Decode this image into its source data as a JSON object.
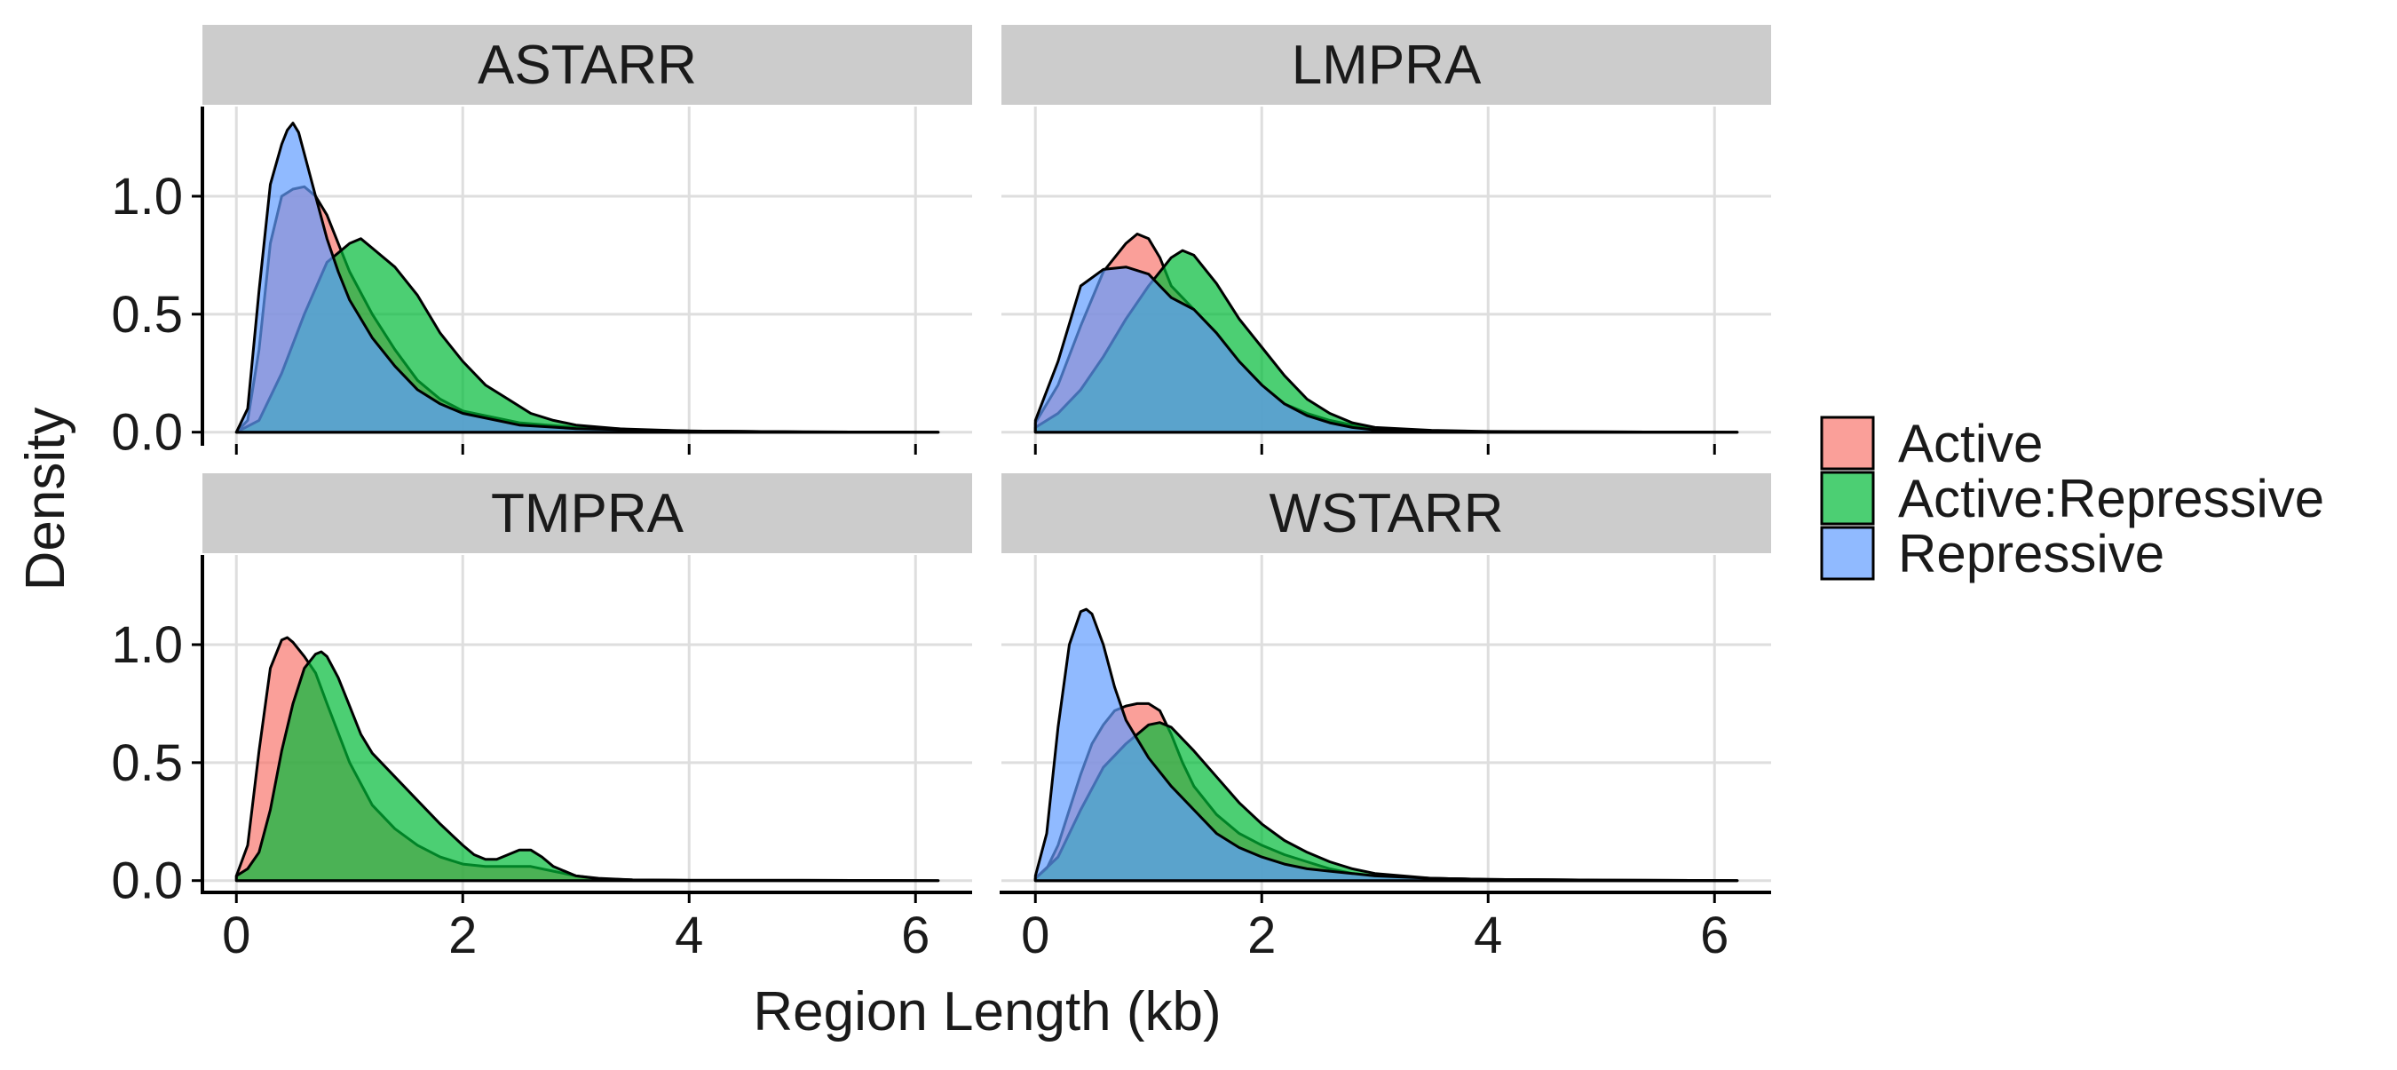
{
  "chart_data": {
    "type": "area",
    "xlabel": "Region Length (kb)",
    "ylabel": "Density",
    "xlim": [
      -0.3,
      6.5
    ],
    "ylim": [
      -0.05,
      1.38
    ],
    "x_ticks": [
      0,
      2,
      4,
      6
    ],
    "x_tick_labels": [
      "0",
      "2",
      "4",
      "6"
    ],
    "y_ticks": [
      0.0,
      0.5,
      1.0
    ],
    "y_tick_labels": [
      "0.0",
      "0.5",
      "1.0"
    ],
    "grid": true,
    "legend_position": "right",
    "legend": [
      {
        "label": "Active",
        "color": "#F8766D"
      },
      {
        "label": "Active:Repressive",
        "color": "#00BA38"
      },
      {
        "label": "Repressive",
        "color": "#619CFF"
      }
    ],
    "panels": [
      {
        "title": "ASTARR",
        "series": [
          {
            "name": "Active",
            "color": "#F8766D",
            "x": [
              0,
              0.1,
              0.2,
              0.3,
              0.4,
              0.5,
              0.6,
              0.7,
              0.8,
              0.9,
              1.0,
              1.2,
              1.4,
              1.6,
              1.8,
              2.0,
              2.5,
              3.0,
              4.0,
              5.0,
              6.2
            ],
            "y": [
              0,
              0.05,
              0.35,
              0.8,
              1.0,
              1.03,
              1.04,
              1.0,
              0.92,
              0.8,
              0.68,
              0.5,
              0.35,
              0.22,
              0.14,
              0.09,
              0.04,
              0.02,
              0.005,
              0.001,
              0
            ]
          },
          {
            "name": "Active:Repressive",
            "color": "#00BA38",
            "x": [
              0,
              0.2,
              0.4,
              0.6,
              0.8,
              1.0,
              1.1,
              1.2,
              1.4,
              1.6,
              1.8,
              2.0,
              2.2,
              2.4,
              2.6,
              2.8,
              3.0,
              3.5,
              4.0,
              5.0,
              6.2
            ],
            "y": [
              0,
              0.05,
              0.25,
              0.5,
              0.72,
              0.8,
              0.82,
              0.78,
              0.7,
              0.58,
              0.42,
              0.3,
              0.2,
              0.14,
              0.08,
              0.05,
              0.03,
              0.01,
              0.005,
              0.001,
              0
            ]
          },
          {
            "name": "Repressive",
            "color": "#619CFF",
            "x": [
              0,
              0.1,
              0.2,
              0.3,
              0.4,
              0.45,
              0.5,
              0.55,
              0.6,
              0.7,
              0.8,
              0.9,
              1.0,
              1.2,
              1.4,
              1.6,
              1.8,
              2.0,
              2.5,
              3.0,
              4.0,
              5.0,
              6.2
            ],
            "y": [
              0,
              0.1,
              0.6,
              1.05,
              1.22,
              1.28,
              1.31,
              1.27,
              1.18,
              1.0,
              0.82,
              0.68,
              0.56,
              0.4,
              0.28,
              0.18,
              0.12,
              0.08,
              0.03,
              0.015,
              0.005,
              0.001,
              0
            ]
          }
        ]
      },
      {
        "title": "LMPRA",
        "series": [
          {
            "name": "Active",
            "color": "#F8766D",
            "x": [
              0,
              0.2,
              0.4,
              0.6,
              0.8,
              0.9,
              1.0,
              1.1,
              1.2,
              1.4,
              1.6,
              1.8,
              2.0,
              2.2,
              2.4,
              2.6,
              2.8,
              3.0,
              3.5,
              4.0,
              5.0,
              6.2
            ],
            "y": [
              0.04,
              0.2,
              0.45,
              0.68,
              0.8,
              0.84,
              0.82,
              0.74,
              0.62,
              0.52,
              0.42,
              0.3,
              0.2,
              0.12,
              0.08,
              0.05,
              0.03,
              0.015,
              0.005,
              0.002,
              0.001,
              0
            ]
          },
          {
            "name": "Active:Repressive",
            "color": "#00BA38",
            "x": [
              0,
              0.2,
              0.4,
              0.6,
              0.8,
              1.0,
              1.2,
              1.3,
              1.4,
              1.6,
              1.8,
              2.0,
              2.2,
              2.4,
              2.6,
              2.8,
              3.0,
              3.5,
              4.0,
              5.0,
              6.2
            ],
            "y": [
              0.02,
              0.08,
              0.18,
              0.32,
              0.48,
              0.62,
              0.74,
              0.77,
              0.75,
              0.63,
              0.48,
              0.36,
              0.24,
              0.14,
              0.08,
              0.04,
              0.02,
              0.008,
              0.003,
              0.001,
              0
            ]
          },
          {
            "name": "Repressive",
            "color": "#619CFF",
            "x": [
              0,
              0.2,
              0.4,
              0.6,
              0.8,
              1.0,
              1.1,
              1.2,
              1.4,
              1.6,
              1.8,
              2.0,
              2.2,
              2.4,
              2.6,
              2.8,
              3.0,
              3.5,
              4.0,
              5.0,
              6.2
            ],
            "y": [
              0.05,
              0.3,
              0.62,
              0.69,
              0.7,
              0.67,
              0.62,
              0.57,
              0.52,
              0.42,
              0.3,
              0.2,
              0.12,
              0.07,
              0.04,
              0.02,
              0.01,
              0.005,
              0.002,
              0.001,
              0
            ]
          }
        ]
      },
      {
        "title": "TMPRA",
        "series": [
          {
            "name": "Active",
            "color": "#F8766D",
            "x": [
              0,
              0.1,
              0.2,
              0.3,
              0.4,
              0.45,
              0.5,
              0.6,
              0.7,
              0.8,
              1.0,
              1.2,
              1.4,
              1.6,
              1.8,
              2.0,
              2.2,
              2.4,
              2.6,
              2.8,
              3.0,
              3.2,
              3.5,
              4.0,
              5.0,
              6.2
            ],
            "y": [
              0.02,
              0.15,
              0.55,
              0.9,
              1.02,
              1.03,
              1.01,
              0.95,
              0.88,
              0.75,
              0.5,
              0.32,
              0.22,
              0.15,
              0.1,
              0.07,
              0.06,
              0.06,
              0.06,
              0.04,
              0.02,
              0.01,
              0.003,
              0.001,
              0.001,
              0
            ]
          },
          {
            "name": "Active:Repressive",
            "color": "#00BA38",
            "x": [
              0,
              0.1,
              0.2,
              0.3,
              0.4,
              0.5,
              0.6,
              0.7,
              0.75,
              0.8,
              0.9,
              1.0,
              1.1,
              1.2,
              1.4,
              1.6,
              1.8,
              2.0,
              2.1,
              2.2,
              2.3,
              2.4,
              2.5,
              2.6,
              2.7,
              2.8,
              3.0,
              3.2,
              3.5,
              4.0,
              5.0,
              6.2
            ],
            "y": [
              0.02,
              0.05,
              0.12,
              0.3,
              0.55,
              0.75,
              0.9,
              0.96,
              0.97,
              0.95,
              0.86,
              0.74,
              0.62,
              0.54,
              0.44,
              0.34,
              0.24,
              0.15,
              0.11,
              0.09,
              0.09,
              0.11,
              0.13,
              0.13,
              0.1,
              0.06,
              0.02,
              0.008,
              0.003,
              0.001,
              0.001,
              0
            ]
          }
        ]
      },
      {
        "title": "WSTARR",
        "series": [
          {
            "name": "Active",
            "color": "#F8766D",
            "x": [
              0,
              0.1,
              0.2,
              0.3,
              0.4,
              0.5,
              0.6,
              0.7,
              0.8,
              0.9,
              1.0,
              1.1,
              1.2,
              1.3,
              1.4,
              1.6,
              1.8,
              2.0,
              2.2,
              2.4,
              2.6,
              2.8,
              3.0,
              3.5,
              4.0,
              5.0,
              6.2
            ],
            "y": [
              0.01,
              0.05,
              0.15,
              0.3,
              0.45,
              0.58,
              0.66,
              0.72,
              0.74,
              0.75,
              0.75,
              0.72,
              0.62,
              0.5,
              0.4,
              0.28,
              0.2,
              0.15,
              0.11,
              0.08,
              0.05,
              0.03,
              0.02,
              0.01,
              0.005,
              0.002,
              0
            ]
          },
          {
            "name": "Active:Repressive",
            "color": "#00BA38",
            "x": [
              0,
              0.2,
              0.4,
              0.6,
              0.8,
              1.0,
              1.1,
              1.2,
              1.4,
              1.6,
              1.8,
              2.0,
              2.2,
              2.4,
              2.6,
              2.8,
              3.0,
              3.5,
              4.0,
              5.0,
              6.2
            ],
            "y": [
              0.01,
              0.1,
              0.3,
              0.48,
              0.58,
              0.66,
              0.67,
              0.65,
              0.55,
              0.44,
              0.33,
              0.24,
              0.17,
              0.12,
              0.08,
              0.05,
              0.03,
              0.01,
              0.005,
              0.002,
              0
            ]
          },
          {
            "name": "Repressive",
            "color": "#619CFF",
            "x": [
              0,
              0.1,
              0.2,
              0.3,
              0.4,
              0.45,
              0.5,
              0.6,
              0.7,
              0.8,
              0.9,
              1.0,
              1.2,
              1.4,
              1.6,
              1.8,
              2.0,
              2.2,
              2.4,
              2.6,
              2.8,
              3.0,
              3.5,
              4.0,
              5.0,
              6.2
            ],
            "y": [
              0.02,
              0.2,
              0.65,
              1.0,
              1.14,
              1.15,
              1.13,
              1.0,
              0.82,
              0.68,
              0.6,
              0.52,
              0.4,
              0.3,
              0.2,
              0.14,
              0.1,
              0.07,
              0.05,
              0.04,
              0.03,
              0.02,
              0.01,
              0.005,
              0.002,
              0
            ]
          }
        ]
      }
    ]
  }
}
